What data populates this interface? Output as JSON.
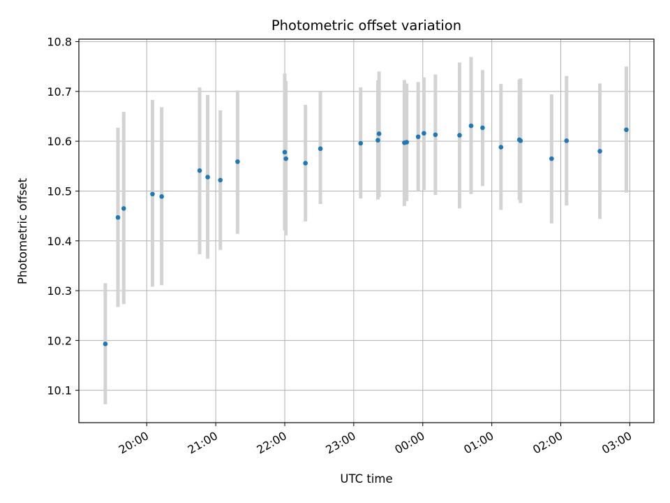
{
  "chart_data": {
    "type": "scatter",
    "title": "Photometric offset variation",
    "xlabel": "UTC time",
    "ylabel": "Photometric offset",
    "grid": true,
    "colors": {
      "point": "#1f77b4",
      "errorbar": "#d3d3d3",
      "grid": "#b0b0b0",
      "axes": "#000000"
    },
    "x_axis": {
      "min": "19:01",
      "max": "03:21",
      "ticks": [
        "20:00",
        "21:00",
        "22:00",
        "23:00",
        "00:00",
        "01:00",
        "02:00",
        "03:00"
      ]
    },
    "y_axis": {
      "min": 10.035,
      "max": 10.805,
      "ticks": [
        10.1,
        10.2,
        10.3,
        10.4,
        10.5,
        10.6,
        10.7,
        10.8
      ],
      "tick_labels": [
        "10.1",
        "10.2",
        "10.3",
        "10.4",
        "10.5",
        "10.6",
        "10.7",
        "10.8"
      ]
    },
    "points": [
      {
        "time": "19:24",
        "y": 10.193,
        "low": 10.072,
        "high": 10.315
      },
      {
        "time": "19:35",
        "y": 10.447,
        "low": 10.267,
        "high": 10.627
      },
      {
        "time": "19:40",
        "y": 10.465,
        "low": 10.273,
        "high": 10.659
      },
      {
        "time": "20:05",
        "y": 10.494,
        "low": 10.308,
        "high": 10.683
      },
      {
        "time": "20:13",
        "y": 10.489,
        "low": 10.311,
        "high": 10.668
      },
      {
        "time": "20:46",
        "y": 10.541,
        "low": 10.373,
        "high": 10.708
      },
      {
        "time": "20:53",
        "y": 10.528,
        "low": 10.364,
        "high": 10.693
      },
      {
        "time": "21:04",
        "y": 10.522,
        "low": 10.382,
        "high": 10.662
      },
      {
        "time": "21:19",
        "y": 10.559,
        "low": 10.414,
        "high": 10.702
      },
      {
        "time": "22:00",
        "y": 10.578,
        "low": 10.421,
        "high": 10.736
      },
      {
        "time": "22:01",
        "y": 10.565,
        "low": 10.411,
        "high": 10.721
      },
      {
        "time": "22:18",
        "y": 10.556,
        "low": 10.439,
        "high": 10.673
      },
      {
        "time": "22:31",
        "y": 10.585,
        "low": 10.474,
        "high": 10.699
      },
      {
        "time": "23:06",
        "y": 10.596,
        "low": 10.485,
        "high": 10.708
      },
      {
        "time": "23:21",
        "y": 10.602,
        "low": 10.483,
        "high": 10.722
      },
      {
        "time": "23:22",
        "y": 10.615,
        "low": 10.488,
        "high": 10.74
      },
      {
        "time": "23:44",
        "y": 10.597,
        "low": 10.47,
        "high": 10.723
      },
      {
        "time": "23:46",
        "y": 10.598,
        "low": 10.48,
        "high": 10.716
      },
      {
        "time": "23:56",
        "y": 10.609,
        "low": 10.5,
        "high": 10.719
      },
      {
        "time": "00:01",
        "y": 10.616,
        "low": 10.502,
        "high": 10.728
      },
      {
        "time": "00:11",
        "y": 10.613,
        "low": 10.492,
        "high": 10.734
      },
      {
        "time": "00:32",
        "y": 10.612,
        "low": 10.465,
        "high": 10.758
      },
      {
        "time": "00:42",
        "y": 10.631,
        "low": 10.494,
        "high": 10.769
      },
      {
        "time": "00:52",
        "y": 10.627,
        "low": 10.51,
        "high": 10.743
      },
      {
        "time": "01:08",
        "y": 10.588,
        "low": 10.462,
        "high": 10.715
      },
      {
        "time": "01:24",
        "y": 10.603,
        "low": 10.482,
        "high": 10.724
      },
      {
        "time": "01:25",
        "y": 10.601,
        "low": 10.476,
        "high": 10.726
      },
      {
        "time": "01:52",
        "y": 10.565,
        "low": 10.435,
        "high": 10.694
      },
      {
        "time": "02:05",
        "y": 10.601,
        "low": 10.471,
        "high": 10.731
      },
      {
        "time": "02:34",
        "y": 10.58,
        "low": 10.444,
        "high": 10.716
      },
      {
        "time": "02:57",
        "y": 10.623,
        "low": 10.497,
        "high": 10.75
      }
    ]
  }
}
